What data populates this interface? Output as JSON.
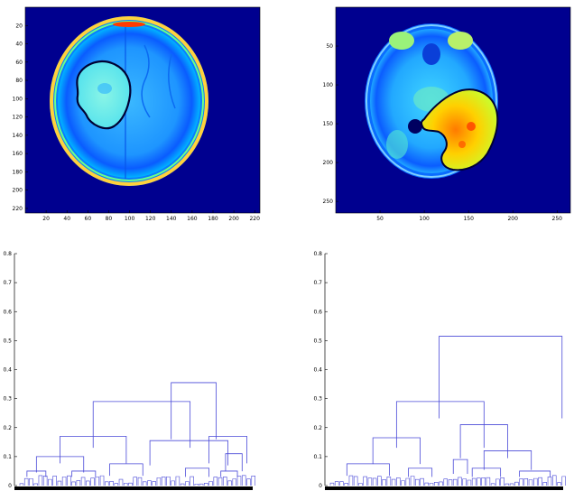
{
  "colors": {
    "colormap": "jet",
    "background": "#00008f",
    "dendrogram": "#4a4ad8",
    "contour": "#000033",
    "axis": "#000000"
  },
  "chart_data": [
    {
      "type": "heatmap",
      "content": "axial brain MRI slice rendered with jet colormap, tumor region outlined",
      "x_ticks": [
        "20",
        "40",
        "60",
        "80",
        "100",
        "120",
        "140",
        "160",
        "180",
        "200",
        "220"
      ],
      "y_ticks": [
        "20",
        "40",
        "60",
        "80",
        "100",
        "120",
        "140",
        "160",
        "180",
        "200",
        "220"
      ],
      "xlim": [
        0,
        225
      ],
      "ylim": [
        0,
        225
      ]
    },
    {
      "type": "heatmap",
      "content": "axial brain MRI slice rendered with jet colormap, tumor region outlined",
      "x_ticks": [
        "50",
        "100",
        "150",
        "200",
        "250"
      ],
      "y_ticks": [
        "50",
        "100",
        "150",
        "200",
        "250"
      ],
      "xlim": [
        0,
        265
      ],
      "ylim": [
        0,
        265
      ]
    },
    {
      "type": "dendrogram",
      "y_ticks": [
        "0",
        "0.1",
        "0.2",
        "0.3",
        "0.4",
        "0.5",
        "0.6",
        "0.7",
        "0.8"
      ],
      "ylim": [
        0,
        0.8
      ],
      "leaf_count": 100,
      "links": [
        {
          "x1": 64,
          "x2": 83,
          "height": 0.355
        },
        {
          "x1": 31,
          "x2": 72,
          "height": 0.29
        },
        {
          "x1": 17,
          "x2": 45,
          "height": 0.17
        },
        {
          "x1": 7,
          "x2": 27,
          "height": 0.1
        },
        {
          "x1": 3,
          "x2": 11,
          "height": 0.05
        },
        {
          "x1": 22,
          "x2": 32,
          "height": 0.05
        },
        {
          "x1": 38,
          "x2": 52,
          "height": 0.075
        },
        {
          "x1": 55,
          "x2": 88,
          "height": 0.155
        },
        {
          "x1": 80,
          "x2": 96,
          "height": 0.17
        },
        {
          "x1": 87,
          "x2": 94,
          "height": 0.11
        },
        {
          "x1": 70,
          "x2": 80,
          "height": 0.06
        },
        {
          "x1": 85,
          "x2": 92,
          "height": 0.05
        }
      ]
    },
    {
      "type": "dendrogram",
      "y_ticks": [
        "0",
        "0.1",
        "0.2",
        "0.3",
        "0.4",
        "0.5",
        "0.6",
        "0.7",
        "0.8"
      ],
      "ylim": [
        0,
        0.8
      ],
      "leaf_count": 100,
      "links": [
        {
          "x1": 46,
          "x2": 98,
          "height": 0.515
        },
        {
          "x1": 28,
          "x2": 65,
          "height": 0.29
        },
        {
          "x1": 18,
          "x2": 38,
          "height": 0.165
        },
        {
          "x1": 55,
          "x2": 75,
          "height": 0.21
        },
        {
          "x1": 7,
          "x2": 25,
          "height": 0.075
        },
        {
          "x1": 33,
          "x2": 43,
          "height": 0.06
        },
        {
          "x1": 52,
          "x2": 58,
          "height": 0.09
        },
        {
          "x1": 65,
          "x2": 85,
          "height": 0.12
        },
        {
          "x1": 60,
          "x2": 72,
          "height": 0.06
        },
        {
          "x1": 80,
          "x2": 93,
          "height": 0.05
        }
      ]
    }
  ]
}
